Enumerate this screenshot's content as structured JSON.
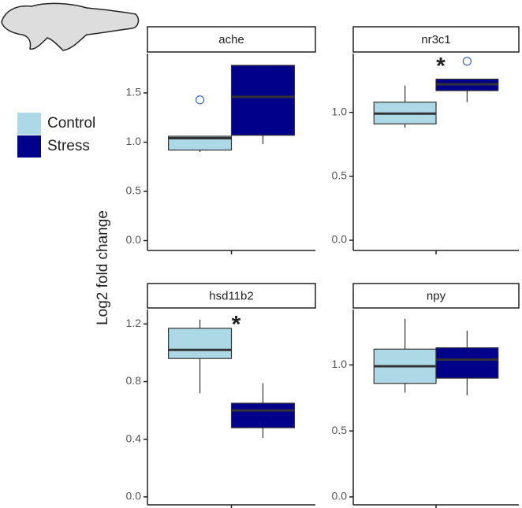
{
  "y_label": "Log2 fold change",
  "legend": {
    "position": "left",
    "series": [
      {
        "name": "Control",
        "color": "#add8e6"
      },
      {
        "name": "Stress",
        "color": "#00008b"
      }
    ]
  },
  "chart_data": [
    {
      "type": "box",
      "title": "ache",
      "ylim": [
        -0.1,
        1.9
      ],
      "yticks": [
        {
          "value": 0,
          "label": "0.0"
        },
        0.5,
        {
          "value": 1,
          "label": "1.0"
        },
        1.5
      ],
      "boxes": [
        {
          "min": 0.9,
          "q1": 0.92,
          "median": 1.04,
          "q3": 1.06,
          "max": 1.06,
          "outliers": [
            1.43
          ]
        },
        {
          "min": 0.98,
          "q1": 1.07,
          "median": 1.46,
          "q3": 1.78,
          "max": 1.78,
          "outliers": []
        }
      ]
    },
    {
      "type": "box",
      "title": "nr3c1",
      "ylim": [
        -0.08,
        1.46
      ],
      "annotation": "*",
      "yticks": [
        {
          "value": 0,
          "label": "0.0"
        },
        0.5,
        {
          "value": 1,
          "label": "1.0"
        }
      ],
      "boxes": [
        {
          "min": 0.88,
          "q1": 0.91,
          "median": 0.99,
          "q3": 1.08,
          "max": 1.21,
          "outliers": []
        },
        {
          "min": 1.08,
          "q1": 1.17,
          "median": 1.22,
          "q3": 1.26,
          "max": 1.26,
          "outliers": [
            1.4
          ]
        }
      ]
    },
    {
      "type": "box",
      "title": "hsd11b2",
      "ylim": [
        -0.055,
        1.3
      ],
      "annotation": "*",
      "yticks": [
        {
          "value": 0,
          "label": "0.0"
        },
        0.4,
        0.8,
        1.2
      ],
      "boxes": [
        {
          "min": 0.72,
          "q1": 0.96,
          "median": 1.02,
          "q3": 1.17,
          "max": 1.23,
          "outliers": []
        },
        {
          "min": 0.41,
          "q1": 0.48,
          "median": 0.6,
          "q3": 0.65,
          "max": 0.79,
          "outliers": []
        }
      ]
    },
    {
      "type": "box",
      "title": "npy",
      "ylim": [
        -0.06,
        1.42
      ],
      "yticks": [
        {
          "value": 0,
          "label": "0.0"
        },
        0.5,
        {
          "value": 1,
          "label": "1.0"
        }
      ],
      "boxes": [
        {
          "min": 0.79,
          "q1": 0.86,
          "median": 0.99,
          "q3": 1.12,
          "max": 1.35,
          "outliers": []
        },
        {
          "min": 0.77,
          "q1": 0.9,
          "median": 1.04,
          "q3": 1.13,
          "max": 1.26,
          "outliers": []
        }
      ]
    }
  ]
}
